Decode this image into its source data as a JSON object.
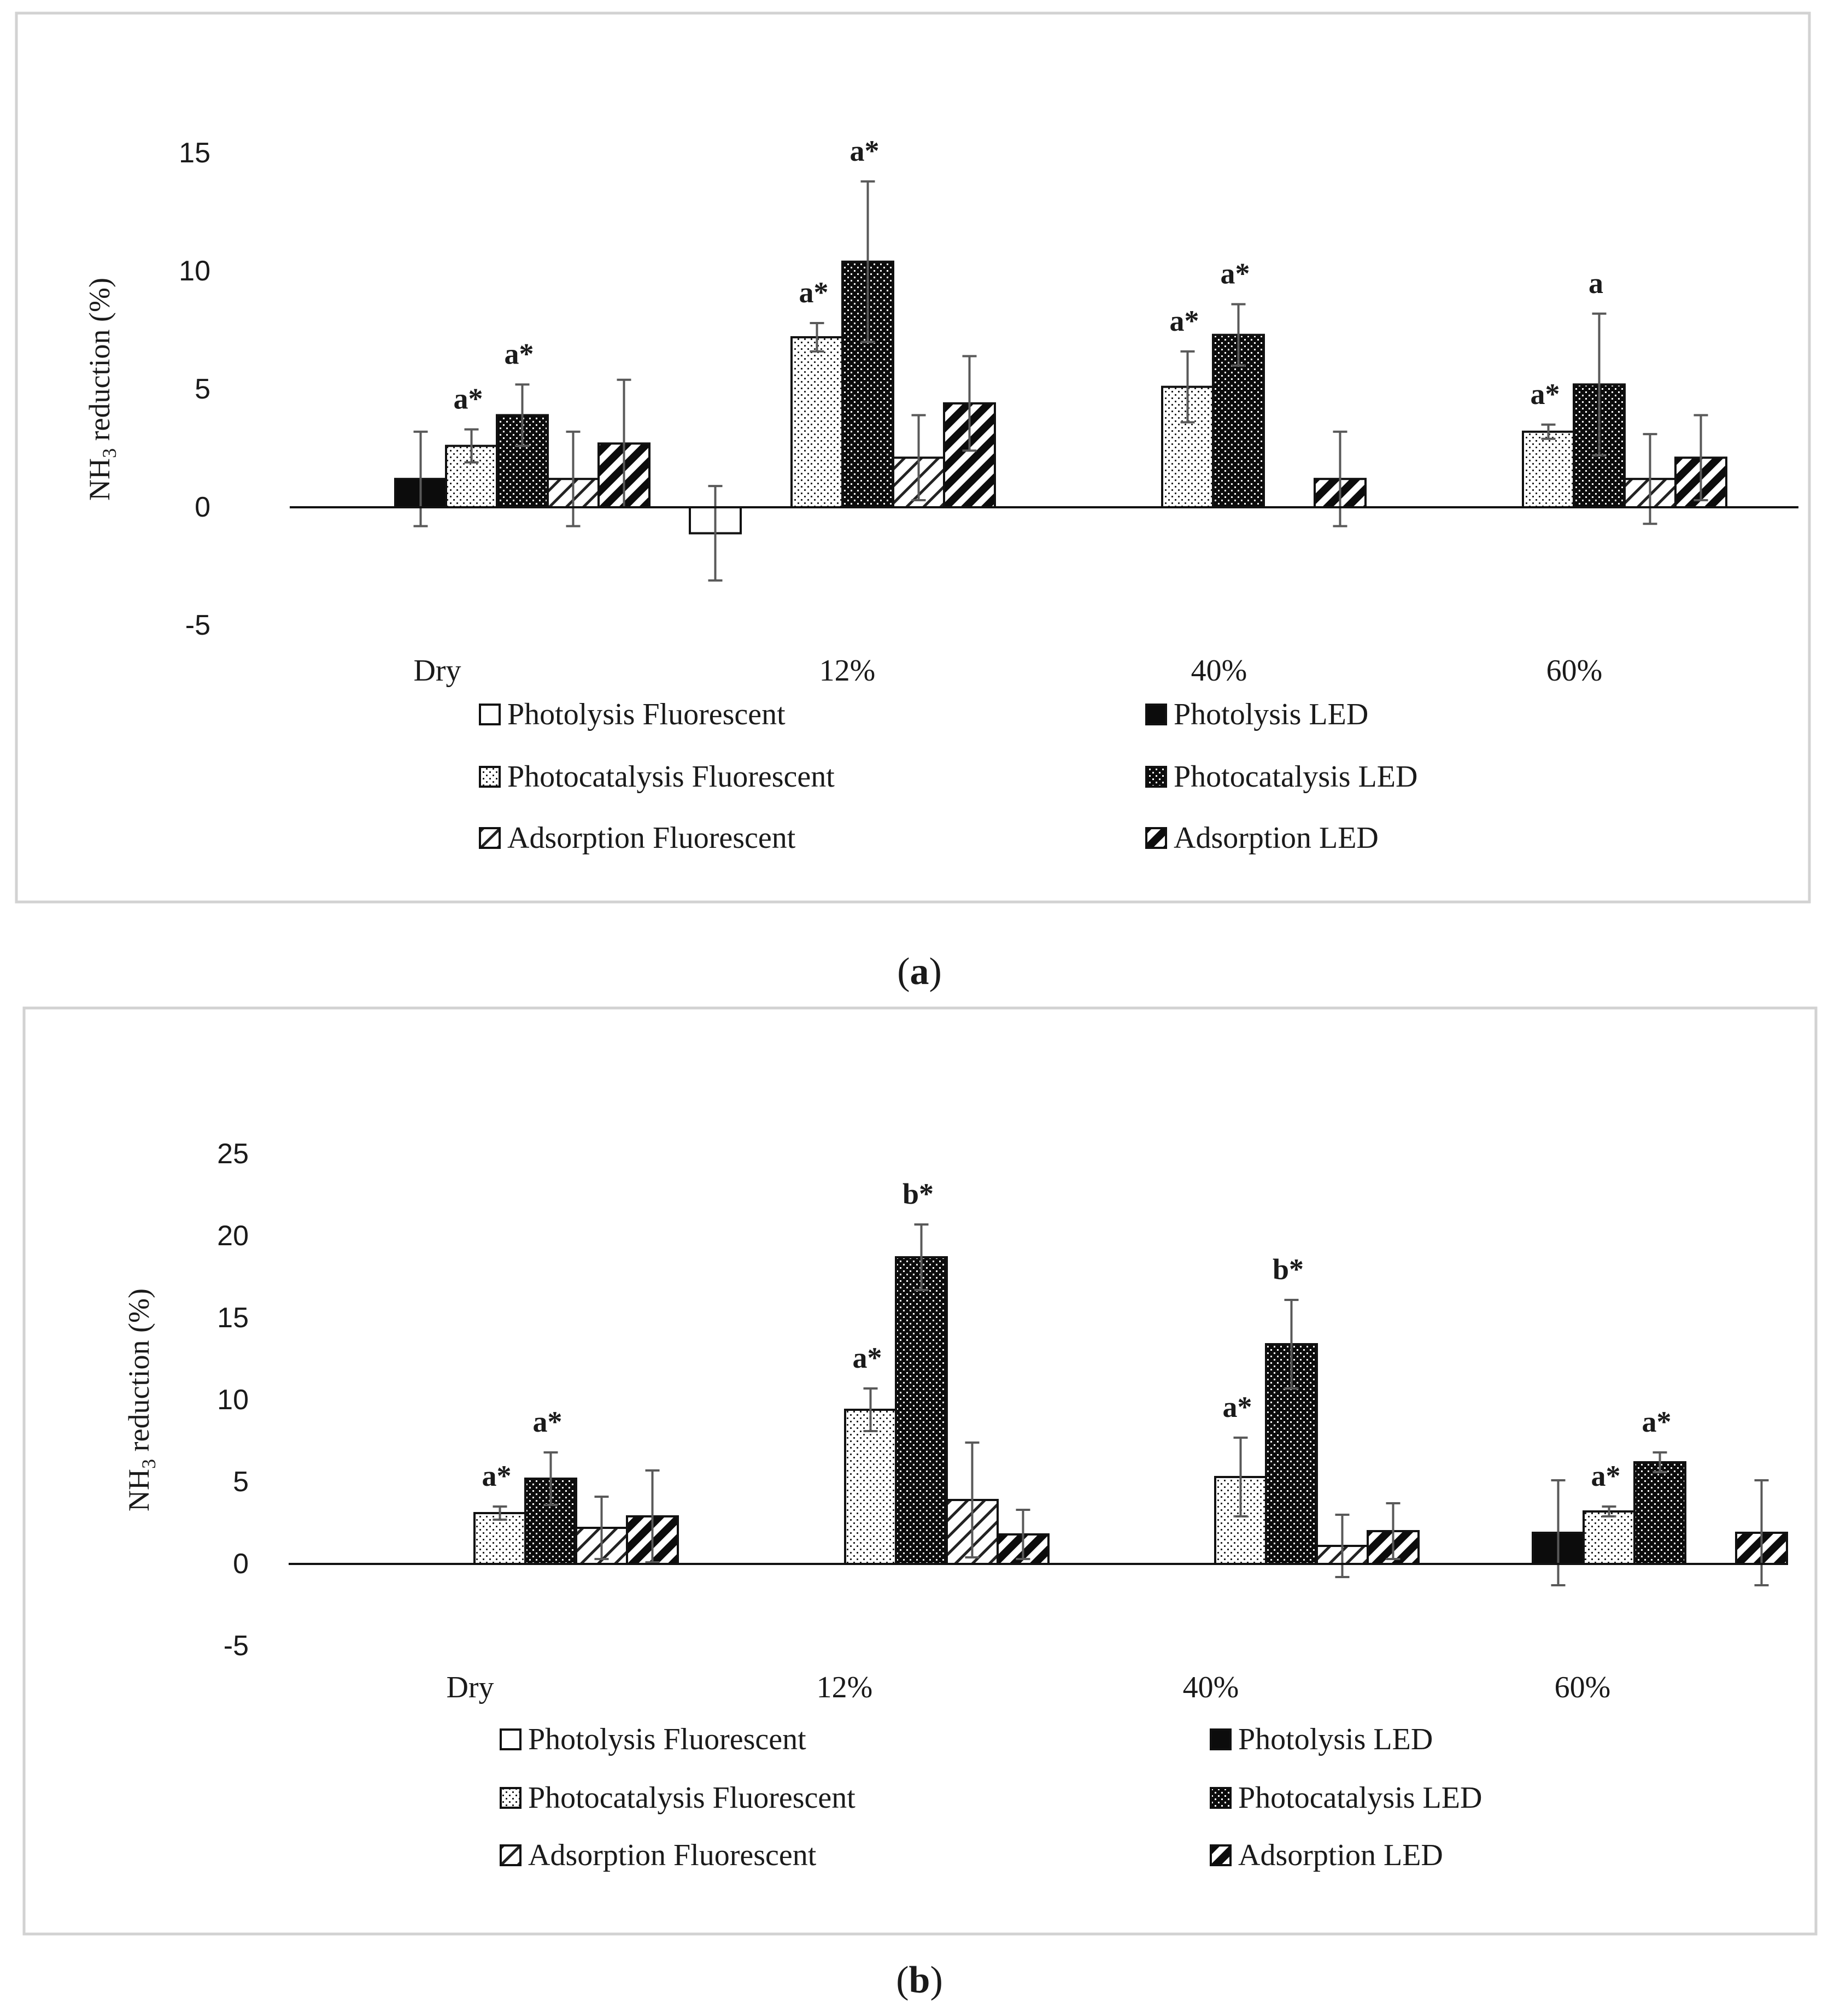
{
  "figure": {
    "panel_labels": [
      "(a)",
      "(b)"
    ]
  },
  "colors": {
    "frame": "#d2d2d2",
    "ink": "#111111",
    "error_bar": "#595959",
    "axis_line": "#111111"
  },
  "chart_data": [
    {
      "type": "bar",
      "panel": "a",
      "ylabel": "NH3 reduction (%)",
      "ylabel_main": "NH",
      "ylabel_sub": "3",
      "ylabel_rest": " reduction (%)",
      "ylim": [
        -5,
        15
      ],
      "yticks": [
        15,
        10,
        5,
        0,
        -5
      ],
      "ytick_labels": [
        "15",
        "10",
        "5",
        "0",
        "-5"
      ],
      "categories": [
        "Dry",
        "12%",
        "40%",
        "60%"
      ],
      "series": [
        {
          "name": "Photolysis Fluorescent",
          "pattern": "white",
          "values": [
            0,
            -1.1,
            0,
            0
          ],
          "errors": [
            0,
            2.0,
            0,
            0
          ]
        },
        {
          "name": "Photolysis LED",
          "pattern": "black",
          "values": [
            1.2,
            0,
            0,
            0
          ],
          "errors": [
            2.0,
            0,
            0,
            0
          ]
        },
        {
          "name": "Photocatalysis Fluorescent",
          "pattern": "dotted-light",
          "values": [
            2.6,
            7.2,
            5.1,
            3.2
          ],
          "errors": [
            0.7,
            0.6,
            1.5,
            0.3
          ]
        },
        {
          "name": "Photocatalysis LED",
          "pattern": "dotted-dark",
          "values": [
            3.9,
            10.4,
            7.3,
            5.2
          ],
          "errors": [
            1.3,
            3.4,
            1.3,
            3.0
          ]
        },
        {
          "name": "Adsorption Fluorescent",
          "pattern": "hatch-light",
          "values": [
            1.2,
            2.1,
            0,
            1.2
          ],
          "errors": [
            2.0,
            1.8,
            0,
            1.9
          ]
        },
        {
          "name": "Adsorption LED",
          "pattern": "hatch-dark",
          "values": [
            2.7,
            4.4,
            1.2,
            2.1
          ],
          "errors": [
            2.7,
            2.0,
            2.0,
            1.8
          ]
        }
      ],
      "annotations": [
        {
          "category": "Dry",
          "series": "Photocatalysis Fluorescent",
          "text": "a*"
        },
        {
          "category": "Dry",
          "series": "Photocatalysis LED",
          "text": "a*"
        },
        {
          "category": "12%",
          "series": "Photocatalysis Fluorescent",
          "text": "a*"
        },
        {
          "category": "12%",
          "series": "Photocatalysis LED",
          "text": "a*"
        },
        {
          "category": "40%",
          "series": "Photocatalysis Fluorescent",
          "text": "a*"
        },
        {
          "category": "40%",
          "series": "Photocatalysis LED",
          "text": "a*"
        },
        {
          "category": "60%",
          "series": "Photocatalysis Fluorescent",
          "text": "a*"
        },
        {
          "category": "60%",
          "series": "Photocatalysis LED",
          "text": "a"
        }
      ],
      "legend": [
        "Photolysis Fluorescent",
        "Photolysis LED",
        "Photocatalysis Fluorescent",
        "Photocatalysis LED",
        "Adsorption Fluorescent",
        "Adsorption LED"
      ]
    },
    {
      "type": "bar",
      "panel": "b",
      "ylabel": "NH3 reduction (%)",
      "ylabel_main": "NH",
      "ylabel_sub": "3",
      "ylabel_rest": " reduction (%)",
      "ylim": [
        -5,
        25
      ],
      "yticks": [
        25,
        20,
        15,
        10,
        5,
        0,
        -5
      ],
      "ytick_labels": [
        "25",
        "20",
        "15",
        "10",
        "5",
        "0",
        "-5"
      ],
      "categories": [
        "Dry",
        "12%",
        "40%",
        "60%"
      ],
      "series": [
        {
          "name": "Photolysis Fluorescent",
          "pattern": "white",
          "values": [
            0,
            0,
            0,
            0
          ],
          "errors": [
            0,
            0,
            0,
            0
          ]
        },
        {
          "name": "Photolysis LED",
          "pattern": "black",
          "values": [
            0,
            0,
            0,
            1.9
          ],
          "errors": [
            0,
            0,
            0,
            3.2
          ]
        },
        {
          "name": "Photocatalysis Fluorescent",
          "pattern": "dotted-light",
          "values": [
            3.1,
            9.4,
            5.3,
            3.2
          ],
          "errors": [
            0.4,
            1.3,
            2.4,
            0.3
          ]
        },
        {
          "name": "Photocatalysis LED",
          "pattern": "dotted-dark",
          "values": [
            5.2,
            18.7,
            13.4,
            6.2
          ],
          "errors": [
            1.6,
            2.0,
            2.7,
            0.6
          ]
        },
        {
          "name": "Adsorption Fluorescent",
          "pattern": "hatch-light",
          "values": [
            2.2,
            3.9,
            1.1,
            0
          ],
          "errors": [
            1.9,
            3.5,
            1.9,
            0
          ]
        },
        {
          "name": "Adsorption LED",
          "pattern": "hatch-dark",
          "values": [
            2.9,
            1.8,
            2.0,
            1.9
          ],
          "errors": [
            2.8,
            1.5,
            1.7,
            3.2
          ]
        }
      ],
      "annotations": [
        {
          "category": "Dry",
          "series": "Photocatalysis Fluorescent",
          "text": "a*"
        },
        {
          "category": "Dry",
          "series": "Photocatalysis LED",
          "text": "a*"
        },
        {
          "category": "12%",
          "series": "Photocatalysis Fluorescent",
          "text": "a*"
        },
        {
          "category": "12%",
          "series": "Photocatalysis LED",
          "text": "b*"
        },
        {
          "category": "40%",
          "series": "Photocatalysis Fluorescent",
          "text": "a*"
        },
        {
          "category": "40%",
          "series": "Photocatalysis LED",
          "text": "b*"
        },
        {
          "category": "60%",
          "series": "Photocatalysis Fluorescent",
          "text": "a*"
        },
        {
          "category": "60%",
          "series": "Photocatalysis LED",
          "text": "a*"
        }
      ],
      "legend": [
        "Photolysis Fluorescent",
        "Photolysis LED",
        "Photocatalysis Fluorescent",
        "Photocatalysis LED",
        "Adsorption Fluorescent",
        "Adsorption LED"
      ]
    }
  ]
}
